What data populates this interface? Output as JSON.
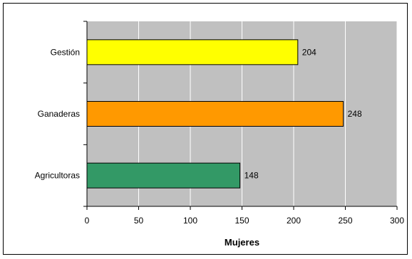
{
  "chart_data": {
    "type": "bar",
    "orientation": "horizontal",
    "categories": [
      "Gestión",
      "Ganaderas",
      "Agricultoras"
    ],
    "values": [
      204,
      248,
      148
    ],
    "colors": [
      "#ffff00",
      "#ff9900",
      "#339966"
    ],
    "xlabel": "Mujeres",
    "ylabel": "",
    "title": "",
    "xlim": [
      0,
      300
    ],
    "xticks": [
      0,
      50,
      100,
      150,
      200,
      250,
      300
    ],
    "grid": true,
    "plot_background": "#c0c0c0",
    "gridline_color": "#ffffff"
  }
}
